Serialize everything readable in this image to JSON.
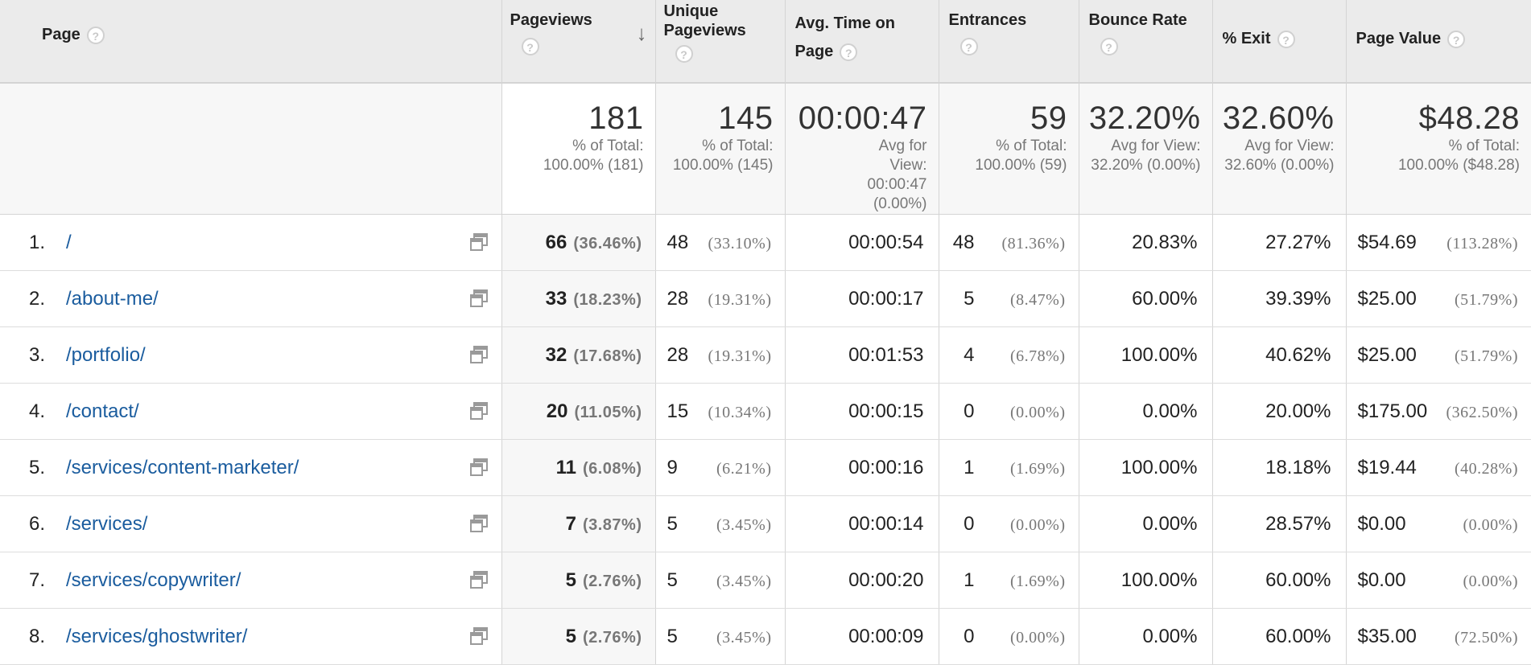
{
  "headers": {
    "page": "Page",
    "pageviews": "Pageviews",
    "unique_pageviews": "Unique Pageviews",
    "avg_time": "Avg. Time on Page",
    "entrances": "Entrances",
    "bounce_rate": "Bounce Rate",
    "exit": "% Exit",
    "page_value": "Page Value",
    "help_glyph": "?",
    "sort_arrow": "↓"
  },
  "totals": {
    "pageviews": {
      "value": "181",
      "sub": "% of Total: 100.00% (181)"
    },
    "unique_pageviews": {
      "value": "145",
      "sub": "% of Total: 100.00% (145)"
    },
    "avg_time": {
      "value": "00:00:47",
      "sub": "Avg for View: 00:00:47 (0.00%)"
    },
    "entrances": {
      "value": "59",
      "sub": "% of Total: 100.00% (59)"
    },
    "bounce_rate": {
      "value": "32.20%",
      "sub": "Avg for View: 32.20% (0.00%)"
    },
    "exit": {
      "value": "32.60%",
      "sub": "Avg for View: 32.60% (0.00%)"
    },
    "page_value": {
      "value": "$48.28",
      "sub": "% of Total: 100.00% ($48.28)"
    }
  },
  "rows": [
    {
      "rank": "1.",
      "page": "/",
      "pv": "66",
      "pv_pct": "(36.46%)",
      "upv": "48",
      "upv_pct": "(33.10%)",
      "time": "00:00:54",
      "ent": "48",
      "ent_pct": "(81.36%)",
      "bounce": "20.83%",
      "exit": "27.27%",
      "value": "$54.69",
      "value_pct": "(113.28%)"
    },
    {
      "rank": "2.",
      "page": "/about-me/",
      "pv": "33",
      "pv_pct": "(18.23%)",
      "upv": "28",
      "upv_pct": "(19.31%)",
      "time": "00:00:17",
      "ent": "5",
      "ent_pct": "(8.47%)",
      "bounce": "60.00%",
      "exit": "39.39%",
      "value": "$25.00",
      "value_pct": "(51.79%)"
    },
    {
      "rank": "3.",
      "page": "/portfolio/",
      "pv": "32",
      "pv_pct": "(17.68%)",
      "upv": "28",
      "upv_pct": "(19.31%)",
      "time": "00:01:53",
      "ent": "4",
      "ent_pct": "(6.78%)",
      "bounce": "100.00%",
      "exit": "40.62%",
      "value": "$25.00",
      "value_pct": "(51.79%)"
    },
    {
      "rank": "4.",
      "page": "/contact/",
      "pv": "20",
      "pv_pct": "(11.05%)",
      "upv": "15",
      "upv_pct": "(10.34%)",
      "time": "00:00:15",
      "ent": "0",
      "ent_pct": "(0.00%)",
      "bounce": "0.00%",
      "exit": "20.00%",
      "value": "$175.00",
      "value_pct": "(362.50%)"
    },
    {
      "rank": "5.",
      "page": "/services/content-marketer/",
      "pv": "11",
      "pv_pct": "(6.08%)",
      "upv": "9",
      "upv_pct": "(6.21%)",
      "time": "00:00:16",
      "ent": "1",
      "ent_pct": "(1.69%)",
      "bounce": "100.00%",
      "exit": "18.18%",
      "value": "$19.44",
      "value_pct": "(40.28%)"
    },
    {
      "rank": "6.",
      "page": "/services/",
      "pv": "7",
      "pv_pct": "(3.87%)",
      "upv": "5",
      "upv_pct": "(3.45%)",
      "time": "00:00:14",
      "ent": "0",
      "ent_pct": "(0.00%)",
      "bounce": "0.00%",
      "exit": "28.57%",
      "value": "$0.00",
      "value_pct": "(0.00%)"
    },
    {
      "rank": "7.",
      "page": "/services/copywriter/",
      "pv": "5",
      "pv_pct": "(2.76%)",
      "upv": "5",
      "upv_pct": "(3.45%)",
      "time": "00:00:20",
      "ent": "1",
      "ent_pct": "(1.69%)",
      "bounce": "100.00%",
      "exit": "60.00%",
      "value": "$0.00",
      "value_pct": "(0.00%)"
    },
    {
      "rank": "8.",
      "page": "/services/ghostwriter/",
      "pv": "5",
      "pv_pct": "(2.76%)",
      "upv": "5",
      "upv_pct": "(3.45%)",
      "time": "00:00:09",
      "ent": "0",
      "ent_pct": "(0.00%)",
      "bounce": "0.00%",
      "exit": "60.00%",
      "value": "$35.00",
      "value_pct": "(72.50%)"
    }
  ],
  "colors": {
    "link": "#1a5c9e",
    "header_bg": "#ebebeb",
    "muted": "#777777"
  },
  "icons": {
    "help": "help-icon",
    "open_page": "open-page-icon",
    "sort": "sort-desc-icon"
  }
}
